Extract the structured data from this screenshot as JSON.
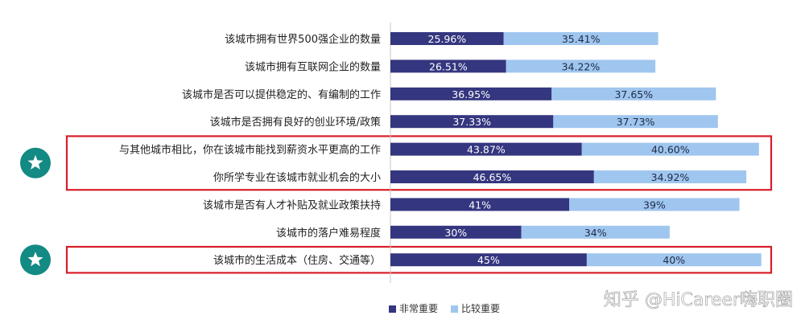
{
  "chart_data": {
    "type": "bar",
    "stacked": true,
    "orientation": "horizontal",
    "categories": [
      "该城市拥有世界500强企业的数量",
      "该城市拥有互联网企业的数量",
      "该城市是否可以提供稳定的、有编制的工作",
      "该城市是否拥有良好的创业环境/政策",
      "与其他城市相比，你在该城市能找到薪资水平更高的工作",
      "你所学专业在该城市就业机会的大小",
      "该城市是否有人才补贴及就业政策扶持",
      "该城市的落户难易程度",
      "该城市的生活成本（住房、交通等）"
    ],
    "series": [
      {
        "name": "非常重要",
        "values": [
          25.96,
          26.51,
          36.95,
          37.33,
          43.87,
          46.65,
          41,
          30,
          45
        ],
        "labels": [
          "25.96%",
          "26.51%",
          "36.95%",
          "37.33%",
          "43.87%",
          "46.65%",
          "41%",
          "30%",
          "45%"
        ]
      },
      {
        "name": "比较重要",
        "values": [
          35.41,
          34.22,
          37.65,
          37.73,
          40.6,
          34.92,
          39,
          34,
          40
        ],
        "labels": [
          "35.41%",
          "34.22%",
          "37.65%",
          "37.73%",
          "40.60%",
          "34.92%",
          "39%",
          "34%",
          "40%"
        ]
      }
    ],
    "highlighted_rows": [
      [
        4,
        5
      ],
      [
        8
      ]
    ],
    "legend_position": "bottom-center",
    "colors": {
      "series_1": "#34367f",
      "series_2": "#9fc6ef",
      "highlight_box": "#d81e2a",
      "star_badge": "#138a83",
      "axis": "#c8c8c8",
      "category_text": "#222222",
      "watermark": "#ffffff"
    }
  },
  "watermark": "知乎 @HiCareer嗨职圈"
}
